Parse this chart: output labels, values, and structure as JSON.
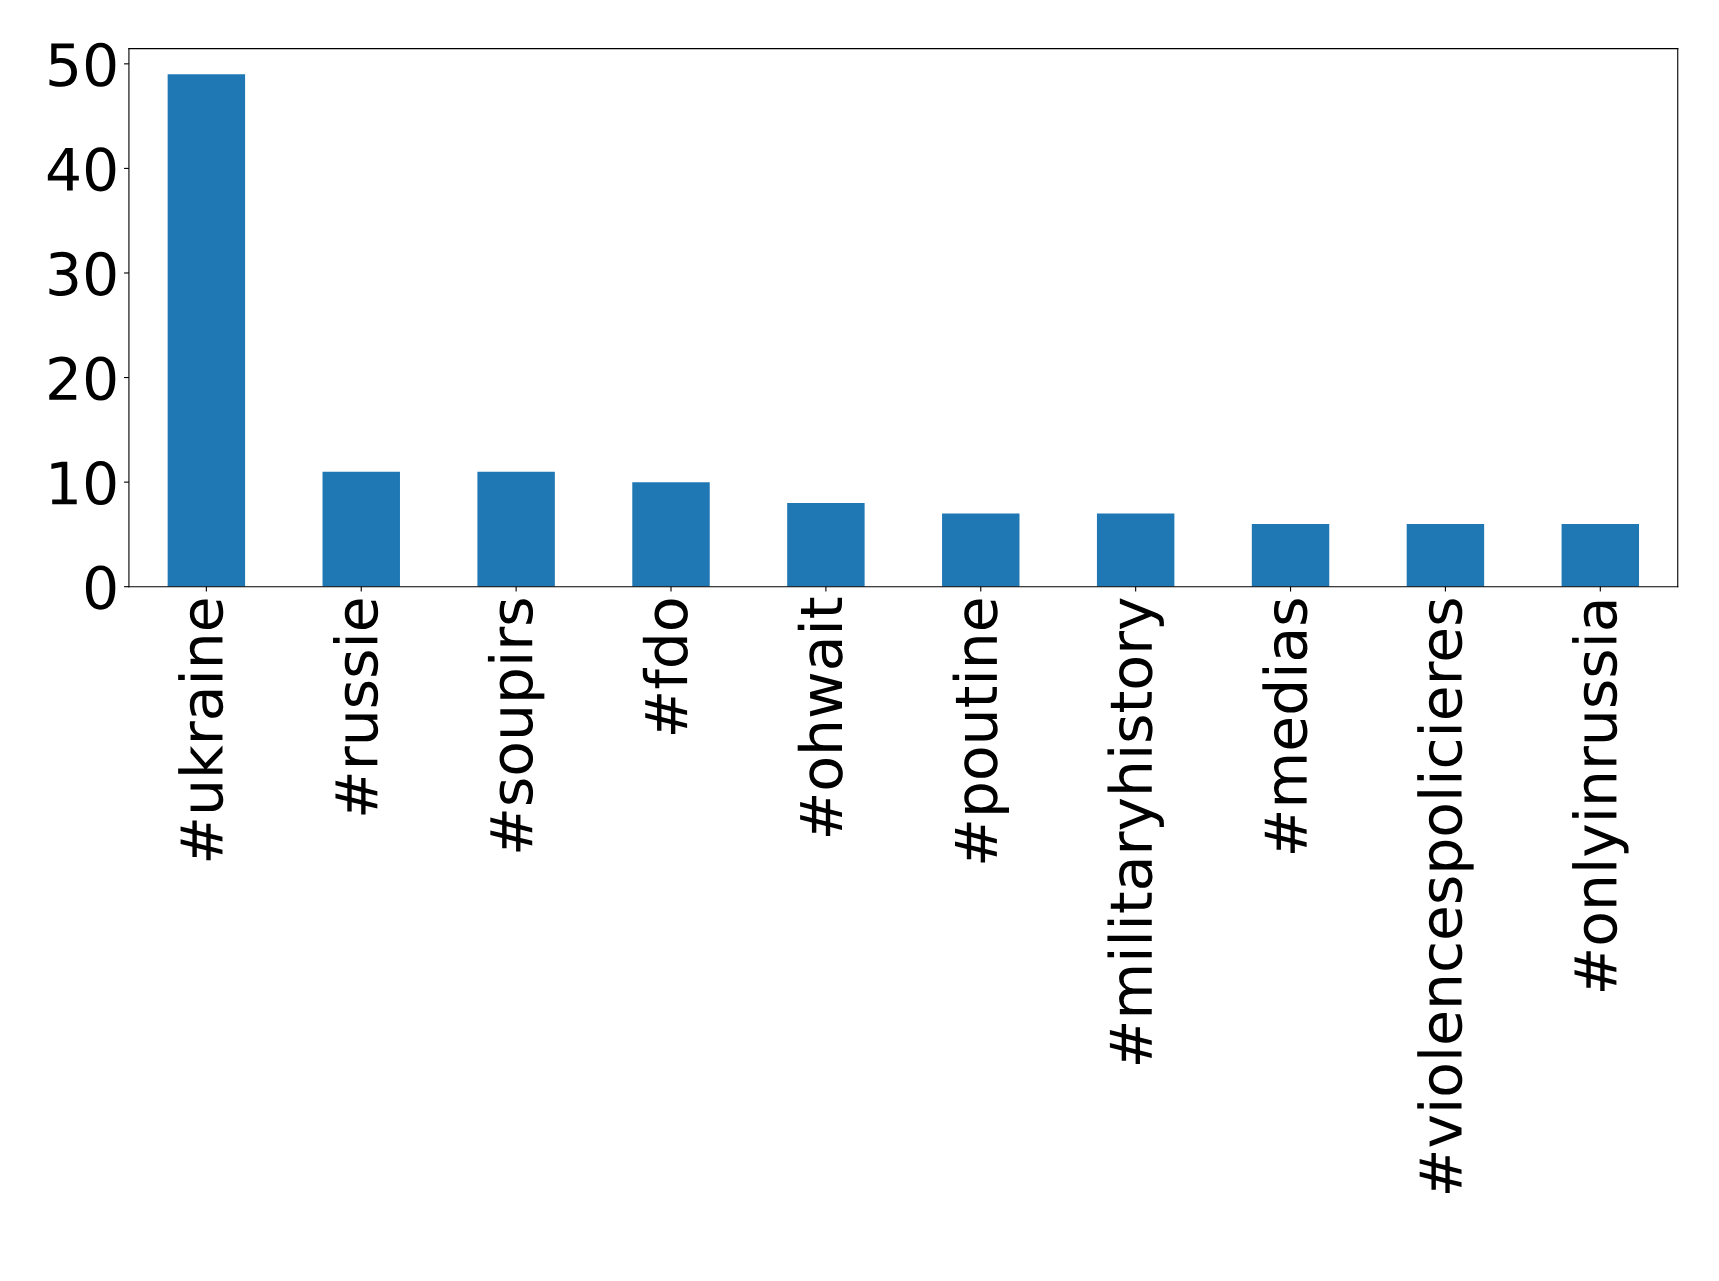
{
  "chart_data": {
    "type": "bar",
    "categories": [
      "#ukraine",
      "#russie",
      "#soupirs",
      "#fdo",
      "#ohwait",
      "#poutine",
      "#militaryhistory",
      "#medias",
      "#violencespolicieres",
      "#onlyinrussia"
    ],
    "values": [
      49,
      11,
      11,
      10,
      8,
      7,
      7,
      6,
      6,
      6
    ],
    "color": "#1f77b4",
    "ylim": [
      0,
      51.45
    ],
    "yticks": [
      0,
      10,
      20,
      30,
      40,
      50
    ],
    "grid": false,
    "legend": false
  }
}
